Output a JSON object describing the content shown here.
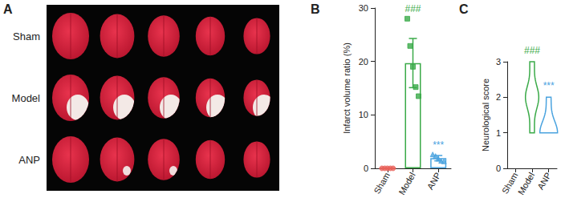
{
  "panel_a": {
    "label": "A",
    "rows": [
      "Sham",
      "Model",
      "ANP"
    ]
  },
  "chart_data": [
    {
      "type": "bar",
      "title": "B",
      "ylabel": "Infarct volume ratio (%)",
      "categories": [
        "Sham",
        "Model",
        "ANP"
      ],
      "values": [
        0,
        19.7,
        1.9
      ],
      "errors": [
        0,
        4.6,
        0.5
      ],
      "points": [
        {
          "values": [
            0,
            0,
            0,
            0,
            0
          ],
          "marker": "circle"
        },
        {
          "values": [
            28.0,
            22.9,
            19.0,
            15.2,
            13.5
          ],
          "marker": "square"
        },
        {
          "values": [
            2.6,
            2.3,
            1.8,
            1.4,
            1.3
          ],
          "marker": "triangle"
        }
      ],
      "colors": [
        "#e8625a",
        "#3aaa48",
        "#4aa3df"
      ],
      "annotations": [
        {
          "category": "Model",
          "text": "###"
        },
        {
          "category": "ANP",
          "text": "***"
        }
      ],
      "ylim": [
        0,
        30
      ],
      "yticks": [
        0,
        10,
        20,
        30
      ],
      "grid": false
    },
    {
      "type": "violin",
      "title": "C",
      "ylabel": "Neurological score",
      "categories": [
        "Sham",
        "Model",
        "ANP"
      ],
      "values": [
        [
          0,
          0,
          0,
          0,
          0
        ],
        [
          1,
          2,
          2,
          2,
          3
        ],
        [
          1,
          1,
          1,
          1,
          2
        ]
      ],
      "colors": [
        "#e8625a",
        "#3aaa48",
        "#4aa3df"
      ],
      "annotations": [
        {
          "category": "Model",
          "text": "###"
        },
        {
          "category": "ANP",
          "text": "***"
        }
      ],
      "ylim": [
        0,
        3
      ],
      "yticks": [
        0,
        1,
        2,
        3
      ],
      "grid": false
    }
  ]
}
